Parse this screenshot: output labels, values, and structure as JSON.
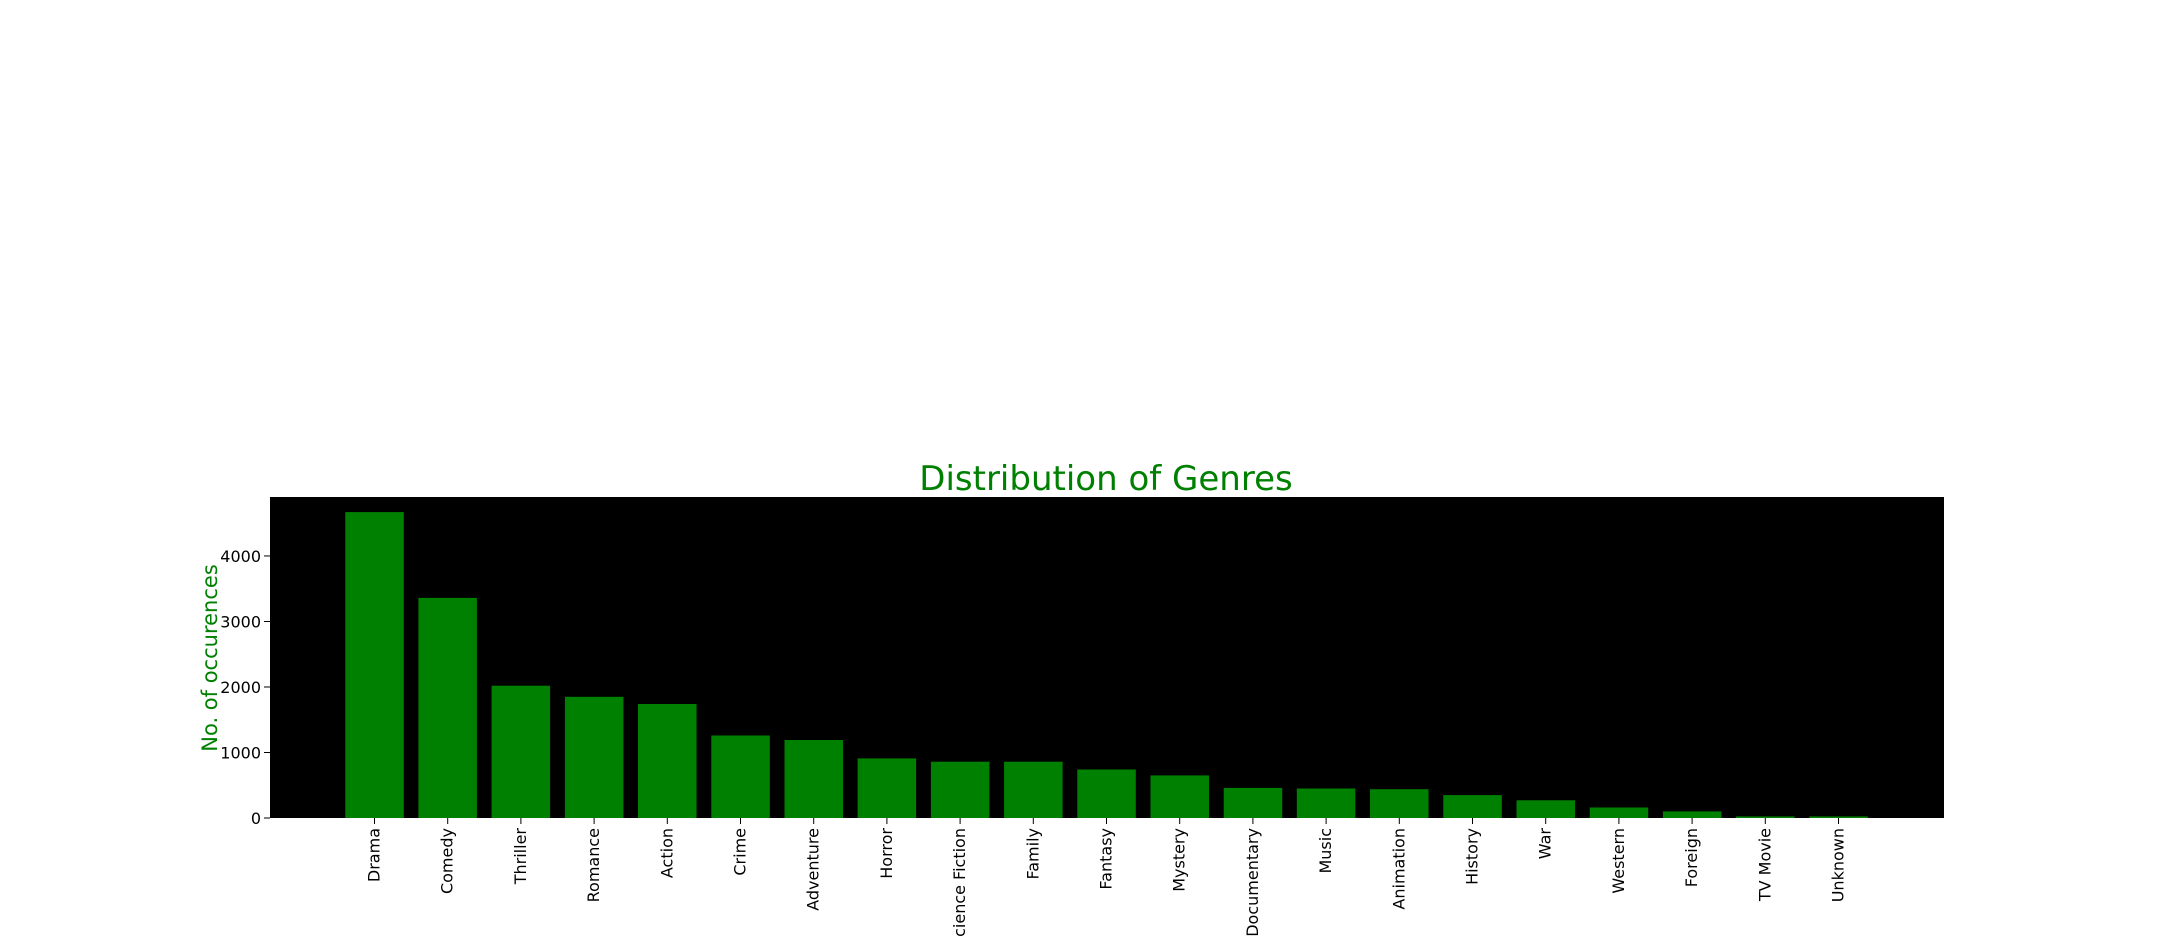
{
  "chart_data": {
    "type": "bar",
    "title": "Distribution of Genres",
    "xlabel": "",
    "ylabel": "No. of occurences",
    "categories": [
      "Drama",
      "Comedy",
      "Thriller",
      "Romance",
      "Action",
      "Crime",
      "Adventure",
      "Horror",
      "Science Fiction",
      "Family",
      "Fantasy",
      "Mystery",
      "Documentary",
      "Music",
      "Animation",
      "History",
      "War",
      "Western",
      "Foreign",
      "TV Movie",
      "Unknown"
    ],
    "values": [
      4670,
      3360,
      2020,
      1850,
      1740,
      1260,
      1190,
      910,
      860,
      860,
      740,
      650,
      460,
      450,
      440,
      350,
      270,
      160,
      100,
      25,
      25
    ],
    "yticks": [
      0,
      1000,
      2000,
      3000,
      4000
    ],
    "ylim": [
      0,
      4900
    ],
    "grid": false,
    "legend": "none",
    "colors": {
      "bar": "#008000",
      "plot_background": "#000000",
      "title": "#008000",
      "ylabel": "#008000",
      "ticks": "#000000"
    }
  }
}
